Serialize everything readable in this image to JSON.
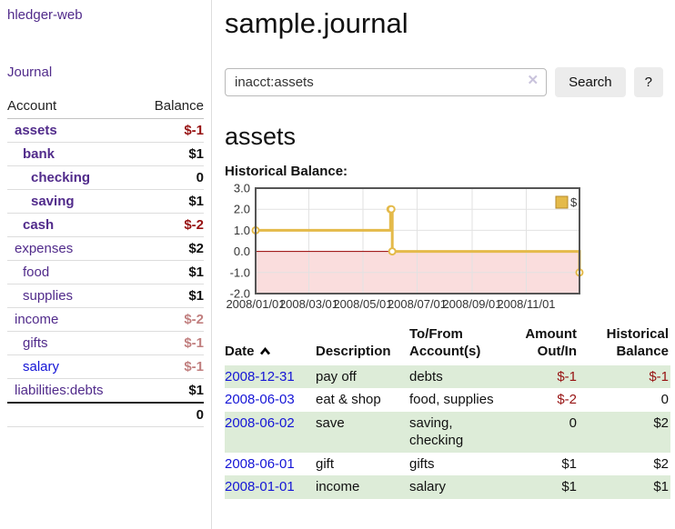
{
  "colors": {
    "purple": "#512b8b",
    "blue": "#1515d6",
    "neg": "#971212",
    "neglight": "#c17f7f",
    "rowgreen": "#ddecd8"
  },
  "sidebar": {
    "brand": "hledger-web",
    "journal_label": "Journal",
    "accounts_table": {
      "headers": [
        "Account",
        "Balance"
      ],
      "rows": [
        {
          "account": "assets",
          "balance": "$-1",
          "level": 0,
          "bold": true,
          "balance_style": "neg",
          "link_color": "purple"
        },
        {
          "account": "bank",
          "balance": "$1",
          "level": 1,
          "bold": true,
          "balance_style": "pos",
          "link_color": "purple"
        },
        {
          "account": "checking",
          "balance": "0",
          "level": 2,
          "bold": true,
          "balance_style": "pos",
          "link_color": "purple"
        },
        {
          "account": "saving",
          "balance": "$1",
          "level": 2,
          "bold": true,
          "balance_style": "pos",
          "link_color": "purple"
        },
        {
          "account": "cash",
          "balance": "$-2",
          "level": 1,
          "bold": true,
          "balance_style": "neg",
          "link_color": "purple"
        },
        {
          "account": "expenses",
          "balance": "$2",
          "level": 0,
          "bold": false,
          "balance_style": "pos",
          "link_color": "purple"
        },
        {
          "account": "food",
          "balance": "$1",
          "level": 1,
          "bold": false,
          "balance_style": "pos",
          "link_color": "purple"
        },
        {
          "account": "supplies",
          "balance": "$1",
          "level": 1,
          "bold": false,
          "balance_style": "pos",
          "link_color": "purple"
        },
        {
          "account": "income",
          "balance": "$-2",
          "level": 0,
          "bold": false,
          "balance_style": "neglight",
          "link_color": "purple"
        },
        {
          "account": "gifts",
          "balance": "$-1",
          "level": 1,
          "bold": false,
          "balance_style": "neglight",
          "link_color": "purple"
        },
        {
          "account": "salary",
          "balance": "$-1",
          "level": 1,
          "bold": false,
          "balance_style": "neglight",
          "link_color": "blue"
        },
        {
          "account": "liabilities:debts",
          "balance": "$1",
          "level": 0,
          "bold": false,
          "balance_style": "pos",
          "link_color": "purple"
        }
      ],
      "total": "0"
    }
  },
  "header": {
    "title": "sample.journal"
  },
  "search": {
    "query": "inacct:assets",
    "clear_icon": "✕",
    "button_label": "Search",
    "help_label": "?"
  },
  "account_page": {
    "heading": "assets"
  },
  "chart_data": {
    "type": "line",
    "title": "Historical Balance:",
    "step": true,
    "series": [
      {
        "name": "$",
        "color": "#e4ba4a",
        "points": [
          [
            "2008-01-01",
            1
          ],
          [
            "2008-06-01",
            2
          ],
          [
            "2008-06-02",
            2
          ],
          [
            "2008-06-03",
            0
          ],
          [
            "2008-12-31",
            -1
          ]
        ]
      }
    ],
    "x_range": [
      "2008-01-01",
      "2008-12-31"
    ],
    "ylim": [
      -2,
      3
    ],
    "y_ticks": [
      3,
      2,
      1,
      0,
      -1,
      -2
    ],
    "x_tick_labels": [
      "2008/01/01",
      "2008/03/01",
      "2008/05/01",
      "2008/07/01",
      "2008/09/01",
      "2008/11/01"
    ],
    "legend": {
      "label": "$",
      "position": "top-right"
    },
    "grid": true,
    "negative_fill": "#fadddd",
    "zero_line_color": "#990000",
    "border_color": "#555555",
    "grid_color": "#e2e2e2"
  },
  "register_table": {
    "headers": [
      "Date",
      "Description",
      "To/From Account(s)",
      "Amount Out/In",
      "Historical Balance"
    ],
    "rows": [
      {
        "date": "2008-12-31",
        "description": "pay off",
        "accounts": "debts",
        "amount": "$-1",
        "amount_style": "neg",
        "balance": "$-1",
        "balance_style": "neg"
      },
      {
        "date": "2008-06-03",
        "description": "eat & shop",
        "accounts": "food, supplies",
        "amount": "$-2",
        "amount_style": "neg",
        "balance": "0",
        "balance_style": "pos"
      },
      {
        "date": "2008-06-02",
        "description": "save",
        "accounts": "saving, checking",
        "amount": "0",
        "amount_style": "pos",
        "balance": "$2",
        "balance_style": "pos"
      },
      {
        "date": "2008-06-01",
        "description": "gift",
        "accounts": "gifts",
        "amount": "$1",
        "amount_style": "pos",
        "balance": "$2",
        "balance_style": "pos"
      },
      {
        "date": "2008-01-01",
        "description": "income",
        "accounts": "salary",
        "amount": "$1",
        "amount_style": "pos",
        "balance": "$1",
        "balance_style": "pos"
      }
    ]
  }
}
